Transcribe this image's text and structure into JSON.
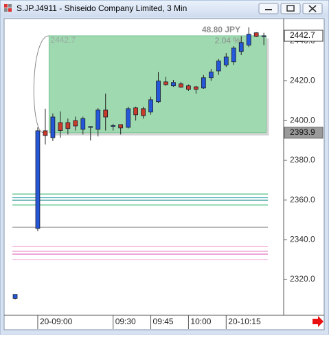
{
  "window": {
    "title": "S.JP.J4911 - Shiseido Company Limited, 3 Min"
  },
  "chart_data": {
    "type": "candlestick",
    "x": [
      -3,
      0,
      1,
      2,
      3,
      4,
      5,
      6,
      7,
      8,
      9,
      10,
      11,
      12,
      13,
      14,
      15,
      16,
      17,
      18,
      19,
      20,
      21,
      22,
      23,
      24,
      25,
      26,
      27,
      28,
      29,
      30
    ],
    "open": [
      2310.5,
      2345.7,
      2394.9,
      2391.4,
      2399,
      2399,
      2400,
      2395.6,
      2396.6,
      2395.6,
      2405.3,
      2397.3,
      2398,
      2396.6,
      2406.4,
      2406,
      2404.3,
      2409.5,
      2419.5,
      2417.5,
      2418.5,
      2417.5,
      2417,
      2416.4,
      2421.6,
      2425,
      2428,
      2429.6,
      2434.8,
      2438,
      2444.2,
      2442.7
    ],
    "high": [
      2312.5,
      2396.6,
      2406,
      2403.6,
      2404.6,
      2401,
      2402,
      2402,
      2397,
      2406.3,
      2413.6,
      2398.4,
      2398,
      2407,
      2407,
      2407,
      2412,
      2424.4,
      2422,
      2420.5,
      2419.5,
      2418.2,
      2417.5,
      2423,
      2426,
      2431,
      2434,
      2437.5,
      2442.5,
      2447,
      2444.5,
      2444.2
    ],
    "low": [
      2310,
      2344.3,
      2388,
      2389.7,
      2391.4,
      2393,
      2395,
      2393,
      2390,
      2392,
      2395,
      2395,
      2393,
      2396,
      2400,
      2401,
      2403,
      2408.8,
      2417.5,
      2417,
      2416.5,
      2415,
      2413.6,
      2416,
      2420,
      2423,
      2427,
      2428,
      2433,
      2437,
      2442,
      2438
    ],
    "close": [
      2312.5,
      2394.9,
      2392.5,
      2401.8,
      2395,
      2396,
      2397.3,
      2401,
      2397,
      2405.3,
      2401.8,
      2397.5,
      2396.3,
      2406,
      2402.9,
      2402.5,
      2410.5,
      2419.9,
      2418.1,
      2419.2,
      2416.8,
      2415.7,
      2415.7,
      2421.6,
      2424.4,
      2430,
      2432,
      2436.5,
      2439.3,
      2443.5,
      2442.4,
      2442.7
    ],
    "up_color": "#2458d8",
    "down_color": "#c83a2a",
    "xlim": [
      -4.28,
      32.63
    ],
    "ylim": [
      2302,
      2451
    ],
    "yticks": [
      {
        "value": 2320,
        "label": "2320.0"
      },
      {
        "value": 2340,
        "label": "2340.0"
      },
      {
        "value": 2360,
        "label": "2360.0"
      },
      {
        "value": 2380,
        "label": "2380.0"
      },
      {
        "value": 2400,
        "label": "2400.0"
      },
      {
        "value": 2420,
        "label": "2420.0"
      },
      {
        "value": 2440,
        "label": "2440.0"
      }
    ],
    "xticks": [
      {
        "value": 0,
        "label": "20-09:00"
      },
      {
        "value": 10,
        "label": "09:30"
      },
      {
        "value": 15,
        "label": "09:45"
      },
      {
        "value": 20,
        "label": "10:00"
      },
      {
        "value": 25,
        "label": "20-10:15"
      }
    ],
    "measure": {
      "low": 2393.9,
      "high": 2442.7,
      "change": 48.8,
      "change_label": "48.80 JPY",
      "percent": 2.04,
      "percent_label": "2.04 %",
      "color": "#9ed9b0"
    },
    "levels": [
      {
        "value": 2363,
        "color": "#3cb878"
      },
      {
        "value": 2361.3,
        "color": "#2aa3a0"
      },
      {
        "value": 2359.9,
        "color": "#168a8a"
      },
      {
        "value": 2357.5,
        "color": "#3cb878"
      },
      {
        "value": 2346.3,
        "color": "#a0a0a0"
      },
      {
        "value": 2336.6,
        "color": "#f2a6d6"
      },
      {
        "value": 2334.2,
        "color": "#e890c8"
      },
      {
        "value": 2332.8,
        "color": "#e070c0"
      },
      {
        "value": 2330,
        "color": "#f2a6d6"
      }
    ]
  }
}
